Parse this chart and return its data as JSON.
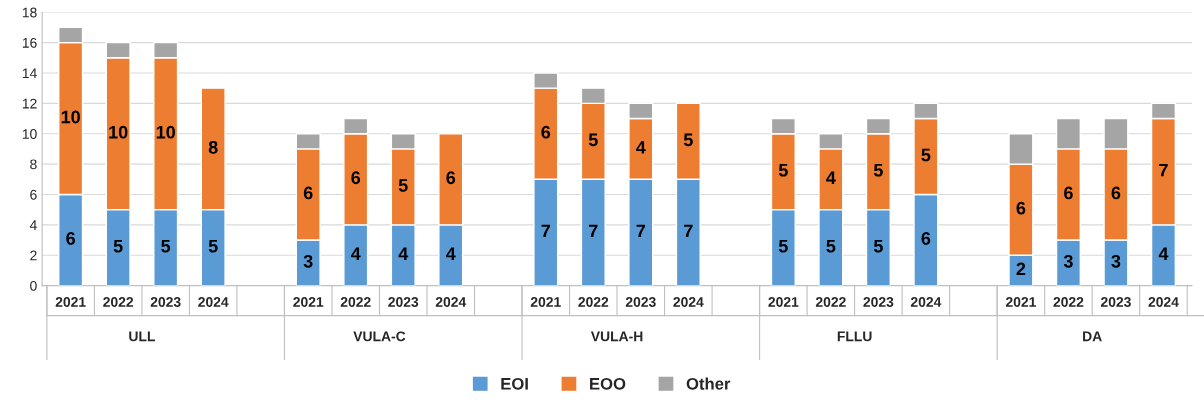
{
  "chart_data": {
    "type": "bar",
    "stacked": true,
    "categories": [
      "2021",
      "2022",
      "2023",
      "2024",
      null,
      "2021",
      "2022",
      "2023",
      "2024",
      null,
      "2021",
      "2022",
      "2023",
      "2024",
      null,
      "2021",
      "2022",
      "2023",
      "2024",
      null,
      "2021",
      "2022",
      "2023",
      "2024"
    ],
    "series": [
      {
        "name": "EOI",
        "color": "#5b9bd5",
        "values": [
          6,
          5,
          5,
          5,
          null,
          3,
          4,
          4,
          4,
          null,
          7,
          7,
          7,
          7,
          null,
          5,
          5,
          5,
          6,
          null,
          2,
          3,
          3,
          4
        ],
        "value_labels": [
          "6",
          "5",
          "5",
          "5",
          null,
          "3",
          "4",
          "4",
          "4",
          null,
          "7",
          "7",
          "7",
          "7",
          null,
          "5",
          "5",
          "5",
          "6",
          null,
          "2",
          "3",
          "3",
          "4"
        ]
      },
      {
        "name": "EOO",
        "color": "#ed7d31",
        "values": [
          10,
          10,
          10,
          8,
          null,
          6,
          6,
          5,
          6,
          null,
          6,
          5,
          4,
          5,
          null,
          5,
          4,
          5,
          5,
          null,
          6,
          6,
          6,
          7
        ],
        "value_labels": [
          "10",
          "10",
          "10",
          "8",
          null,
          "6",
          "6",
          "5",
          "6",
          null,
          "6",
          "5",
          "4",
          "5",
          null,
          "5",
          "4",
          "5",
          "5",
          null,
          "6",
          "6",
          "6",
          "7"
        ]
      },
      {
        "name": "Other",
        "color": "#a5a5a5",
        "values": [
          1,
          1,
          1,
          null,
          null,
          1,
          1,
          1,
          null,
          null,
          1,
          1,
          1,
          null,
          null,
          1,
          1,
          1,
          1,
          null,
          2,
          2,
          2,
          1
        ]
      }
    ],
    "annotations": [
      "ULL",
      "VULA-C",
      "VULA-H",
      "FLLU",
      "DA"
    ],
    "ylim": [
      0,
      18
    ],
    "yticks": [
      0,
      2,
      4,
      6,
      8,
      10,
      12,
      14,
      16,
      18
    ],
    "grid": "y",
    "legend": "bottom"
  }
}
